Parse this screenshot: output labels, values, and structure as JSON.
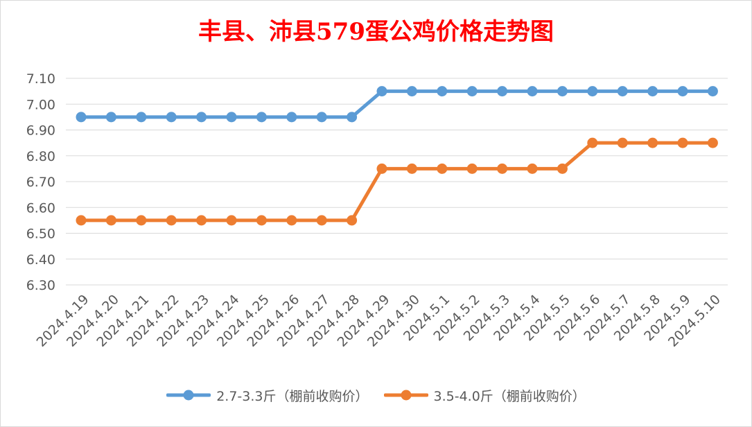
{
  "chart_data": {
    "type": "line",
    "title": "丰县、沛县579蛋公鸡价格走势图",
    "xlabel": "",
    "ylabel": "",
    "ylim": [
      6.3,
      7.1
    ],
    "yticks": [
      "7.10",
      "7.00",
      "6.90",
      "6.80",
      "6.70",
      "6.60",
      "6.50",
      "6.40",
      "6.30"
    ],
    "grid": true,
    "legend_position": "bottom",
    "categories": [
      "2024.4.19",
      "2024.4.20",
      "2024.4.21",
      "2024.4.22",
      "2024.4.23",
      "2024.4.24",
      "2024.4.25",
      "2024.4.26",
      "2024.4.27",
      "2024.4.28",
      "2024.4.29",
      "2024.4.30",
      "2024.5.1",
      "2024.5.2",
      "2024.5.3",
      "2024.5.4",
      "2024.5.5",
      "2024.5.6",
      "2024.5.7",
      "2024.5.8",
      "2024.5.9",
      "2024.5.10"
    ],
    "series": [
      {
        "name": "2.7-3.3斤（棚前收购价）",
        "color": "#5b9bd5",
        "values": [
          6.95,
          6.95,
          6.95,
          6.95,
          6.95,
          6.95,
          6.95,
          6.95,
          6.95,
          6.95,
          7.05,
          7.05,
          7.05,
          7.05,
          7.05,
          7.05,
          7.05,
          7.05,
          7.05,
          7.05,
          7.05,
          7.05
        ]
      },
      {
        "name": "3.5-4.0斤（棚前收购价）",
        "color": "#ed7d31",
        "values": [
          6.55,
          6.55,
          6.55,
          6.55,
          6.55,
          6.55,
          6.55,
          6.55,
          6.55,
          6.55,
          6.75,
          6.75,
          6.75,
          6.75,
          6.75,
          6.75,
          6.75,
          6.85,
          6.85,
          6.85,
          6.85,
          6.85
        ]
      }
    ]
  }
}
